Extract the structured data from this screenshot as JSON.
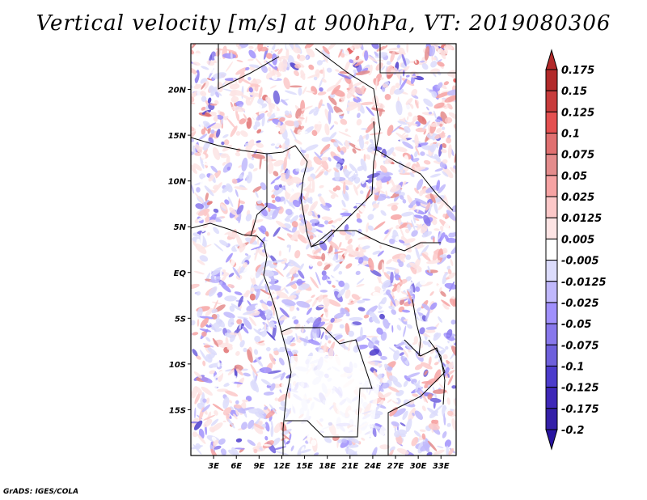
{
  "title": "Vertical velocity [m/s] at 900hPa, VT: 2019080306",
  "credit": "GrADS: IGES/COLA",
  "map": {
    "variable": "Vertical velocity",
    "units": "m/s",
    "level": "900hPa",
    "valid_time": "2019080306",
    "lon_range": [
      0,
      35
    ],
    "lat_range": [
      -20,
      25
    ],
    "lon_ticks": [
      "3E",
      "6E",
      "9E",
      "12E",
      "15E",
      "18E",
      "21E",
      "24E",
      "27E",
      "30E",
      "33E"
    ],
    "lon_tick_values": [
      3,
      6,
      9,
      12,
      15,
      18,
      21,
      24,
      27,
      30,
      33
    ],
    "lat_ticks": [
      "20N",
      "15N",
      "10N",
      "5N",
      "EQ",
      "5S",
      "10S",
      "15S"
    ],
    "lat_tick_values": [
      20,
      15,
      10,
      5,
      0,
      -5,
      -10,
      -15
    ]
  },
  "colorbar": {
    "labels": [
      "0.175",
      "0.15",
      "0.125",
      "0.1",
      "0.075",
      "0.05",
      "0.025",
      "0.0125",
      "0.005",
      "-0.005",
      "-0.0125",
      "-0.025",
      "-0.05",
      "-0.075",
      "-0.1",
      "-0.125",
      "-0.175",
      "-0.2"
    ],
    "colors": [
      "#b22a2a",
      "#b22a2a",
      "#c83c3c",
      "#e45050",
      "#e07070",
      "#e48c8c",
      "#f6a3a3",
      "#fcc8c8",
      "#fde4e4",
      "#ffffff",
      "#dcdcfc",
      "#c0b8fc",
      "#a090fc",
      "#8878ec",
      "#6e60dc",
      "#4c3ccc",
      "#3e28b8",
      "#3420a8",
      "#2814a0"
    ]
  }
}
